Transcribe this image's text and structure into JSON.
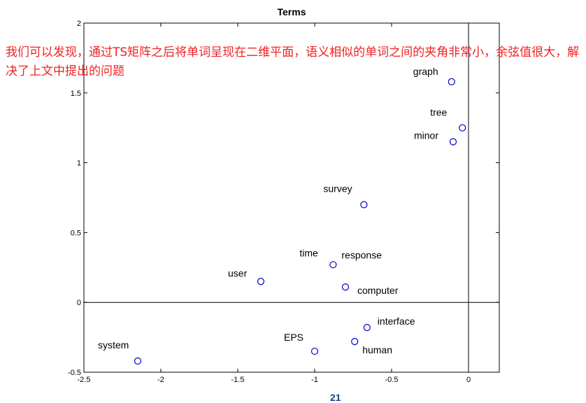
{
  "annotation": "我们可以发现，通过TS矩阵之后将单词呈现在二维平面，语义相似的单词之间的夹角非常小，余弦值很大，解决了上文中提出的问题",
  "page_number": "21",
  "colors": {
    "marker": "#0000cc",
    "annotation": "#ee2222",
    "axes": "#000000"
  },
  "chart_data": {
    "type": "scatter",
    "title": "Terms",
    "xlabel": "",
    "ylabel": "",
    "xlim": [
      -2.5,
      0.2
    ],
    "ylim": [
      -0.5,
      2
    ],
    "x_ticks": [
      -2.5,
      -2,
      -1.5,
      -1,
      -0.5,
      0
    ],
    "x_tick_labels": [
      "-2.5",
      "-2",
      "-1.5",
      "-1",
      "-0.5",
      "0"
    ],
    "y_ticks": [
      -0.5,
      0,
      0.5,
      1,
      1.5,
      2
    ],
    "y_tick_labels": [
      "-0.5",
      "0",
      "0.5",
      "1",
      "1.5",
      "2"
    ],
    "grid": false,
    "reference_lines": {
      "x": 0,
      "y": 0
    },
    "marker": "open-circle",
    "points": [
      {
        "label": "graph",
        "x": -0.11,
        "y": 1.58
      },
      {
        "label": "tree",
        "x": -0.04,
        "y": 1.25
      },
      {
        "label": "minor",
        "x": -0.1,
        "y": 1.15
      },
      {
        "label": "survey",
        "x": -0.68,
        "y": 0.7
      },
      {
        "label": "time",
        "x": -0.88,
        "y": 0.27
      },
      {
        "label": "response",
        "x": -0.88,
        "y": 0.27
      },
      {
        "label": "user",
        "x": -1.35,
        "y": 0.15
      },
      {
        "label": "computer",
        "x": -0.8,
        "y": 0.11
      },
      {
        "label": "interface",
        "x": -0.66,
        "y": -0.18
      },
      {
        "label": "human",
        "x": -0.74,
        "y": -0.28
      },
      {
        "label": "EPS",
        "x": -1.0,
        "y": -0.35
      },
      {
        "label": "system",
        "x": -2.15,
        "y": -0.42
      }
    ]
  }
}
